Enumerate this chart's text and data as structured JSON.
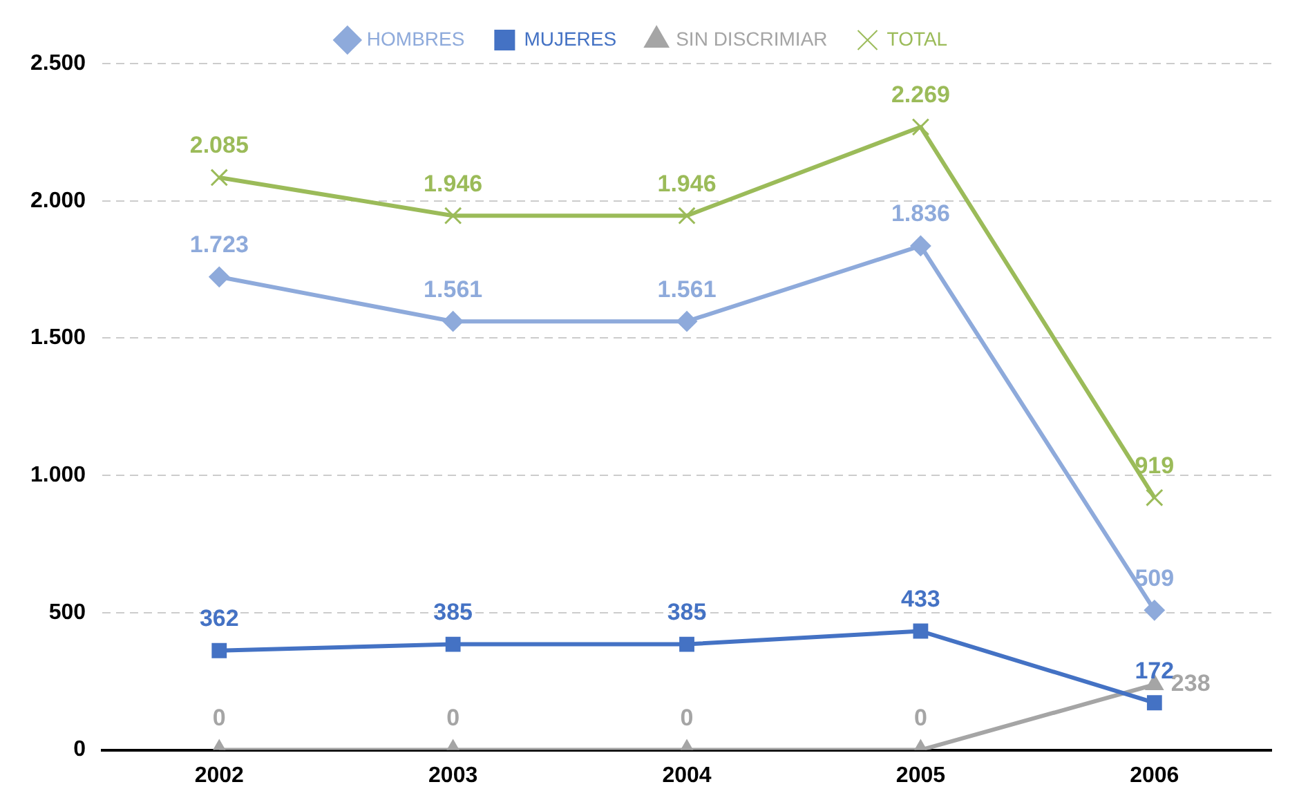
{
  "chart_data": {
    "type": "line",
    "categories": [
      "2002",
      "2003",
      "2004",
      "2005",
      "2006"
    ],
    "series": [
      {
        "name": "HOMBRES",
        "color": "#8eaadb",
        "marker": "diamond",
        "values": [
          1723,
          1561,
          1561,
          1836,
          509
        ],
        "value_labels": [
          "1.723",
          "1.561",
          "1.561",
          "1.836",
          "509"
        ]
      },
      {
        "name": "MUJERES",
        "color": "#4472c4",
        "marker": "square",
        "values": [
          362,
          385,
          385,
          433,
          172
        ],
        "value_labels": [
          "362",
          "385",
          "385",
          "433",
          "172"
        ]
      },
      {
        "name": "SIN DISCRIMIAR",
        "color": "#a5a5a5",
        "marker": "triangle",
        "values": [
          0,
          0,
          0,
          0,
          238
        ],
        "value_labels": [
          "0",
          "0",
          "0",
          "0",
          "238"
        ]
      },
      {
        "name": "TOTAL",
        "color": "#9bbb59",
        "marker": "cross",
        "values": [
          2085,
          1946,
          1946,
          2269,
          919
        ],
        "value_labels": [
          "2.085",
          "1.946",
          "1.946",
          "2.269",
          "919"
        ]
      }
    ],
    "ylim": [
      0,
      2500
    ],
    "yticks": [
      {
        "value": 0,
        "label": "0"
      },
      {
        "value": 500,
        "label": "500"
      },
      {
        "value": 1000,
        "label": "1.000"
      },
      {
        "value": 1500,
        "label": "1.500"
      },
      {
        "value": 2000,
        "label": "2.000"
      },
      {
        "value": 2500,
        "label": "2.500"
      }
    ],
    "grid": "y",
    "legend": "top",
    "line_style": "solid"
  }
}
